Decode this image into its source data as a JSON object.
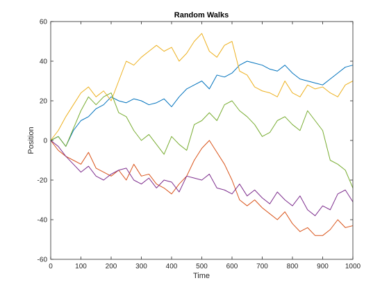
{
  "chart_data": {
    "type": "line",
    "title": "Random Walks",
    "xlabel": "Time",
    "ylabel": "Position",
    "xlim": [
      0,
      1000
    ],
    "ylim": [
      -60,
      60
    ],
    "xticks": [
      0,
      100,
      200,
      300,
      400,
      500,
      600,
      700,
      800,
      900,
      1000
    ],
    "yticks": [
      -60,
      -40,
      -20,
      0,
      20,
      40,
      60
    ],
    "grid": false,
    "box": true,
    "series": [
      {
        "color": "#0072BD",
        "x": [
          0,
          25,
          50,
          75,
          100,
          125,
          150,
          175,
          200,
          225,
          250,
          275,
          300,
          325,
          350,
          375,
          400,
          425,
          450,
          475,
          500,
          525,
          550,
          575,
          600,
          625,
          650,
          675,
          700,
          725,
          750,
          775,
          800,
          825,
          850,
          875,
          900,
          925,
          950,
          975,
          1000
        ],
        "y": [
          0,
          2,
          -3,
          5,
          10,
          12,
          16,
          18,
          22,
          20,
          19,
          21,
          20,
          18,
          19,
          21,
          17,
          22,
          26,
          28,
          30,
          26,
          33,
          32,
          34,
          38,
          40,
          39,
          38,
          36,
          35,
          38,
          34,
          31,
          30,
          29,
          28,
          31,
          34,
          37,
          38
        ]
      },
      {
        "color": "#D95319",
        "x": [
          0,
          25,
          50,
          75,
          100,
          125,
          150,
          175,
          200,
          225,
          250,
          275,
          300,
          325,
          350,
          375,
          400,
          425,
          450,
          475,
          500,
          525,
          550,
          575,
          600,
          625,
          650,
          675,
          700,
          725,
          750,
          775,
          800,
          825,
          850,
          875,
          900,
          925,
          950,
          975,
          1000
        ],
        "y": [
          0,
          -5,
          -8,
          -10,
          -12,
          -6,
          -14,
          -16,
          -18,
          -15,
          -20,
          -12,
          -18,
          -17,
          -22,
          -24,
          -27,
          -22,
          -18,
          -10,
          -4,
          0,
          -6,
          -12,
          -20,
          -30,
          -33,
          -30,
          -34,
          -37,
          -40,
          -36,
          -42,
          -46,
          -44,
          -48,
          -48,
          -45,
          -40,
          -44,
          -43
        ]
      },
      {
        "color": "#EDB120",
        "x": [
          0,
          25,
          50,
          75,
          100,
          125,
          150,
          175,
          200,
          225,
          250,
          275,
          300,
          325,
          350,
          375,
          400,
          425,
          450,
          475,
          500,
          525,
          550,
          575,
          600,
          625,
          650,
          675,
          700,
          725,
          750,
          775,
          800,
          825,
          850,
          875,
          900,
          925,
          950,
          975,
          1000
        ],
        "y": [
          0,
          5,
          12,
          18,
          24,
          27,
          22,
          25,
          20,
          30,
          40,
          38,
          42,
          45,
          48,
          45,
          47,
          40,
          44,
          50,
          54,
          45,
          42,
          48,
          50,
          35,
          33,
          27,
          25,
          24,
          22,
          30,
          24,
          22,
          28,
          26,
          27,
          24,
          22,
          28,
          30
        ]
      },
      {
        "color": "#7E2F8E",
        "x": [
          0,
          25,
          50,
          75,
          100,
          125,
          150,
          175,
          200,
          225,
          250,
          275,
          300,
          325,
          350,
          375,
          400,
          425,
          450,
          475,
          500,
          525,
          550,
          575,
          600,
          625,
          650,
          675,
          700,
          725,
          750,
          775,
          800,
          825,
          850,
          875,
          900,
          925,
          950,
          975,
          1000
        ],
        "y": [
          0,
          -3,
          -8,
          -12,
          -16,
          -13,
          -18,
          -20,
          -17,
          -15,
          -14,
          -20,
          -22,
          -19,
          -24,
          -20,
          -21,
          -26,
          -18,
          -19,
          -20,
          -17,
          -24,
          -25,
          -27,
          -22,
          -28,
          -25,
          -29,
          -32,
          -26,
          -30,
          -33,
          -28,
          -35,
          -38,
          -33,
          -35,
          -27,
          -25,
          -31
        ]
      },
      {
        "color": "#77AC30",
        "x": [
          0,
          25,
          50,
          75,
          100,
          125,
          150,
          175,
          200,
          225,
          250,
          275,
          300,
          325,
          350,
          375,
          400,
          425,
          450,
          475,
          500,
          525,
          550,
          575,
          600,
          625,
          650,
          675,
          700,
          725,
          750,
          775,
          800,
          825,
          850,
          875,
          900,
          925,
          950,
          975,
          1000
        ],
        "y": [
          0,
          2,
          -3,
          6,
          15,
          22,
          18,
          22,
          24,
          14,
          12,
          5,
          0,
          3,
          -2,
          -7,
          2,
          -2,
          -5,
          8,
          10,
          14,
          10,
          18,
          20,
          15,
          12,
          8,
          2,
          4,
          10,
          12,
          8,
          5,
          15,
          10,
          5,
          -10,
          -12,
          -15,
          -24
        ]
      }
    ]
  }
}
